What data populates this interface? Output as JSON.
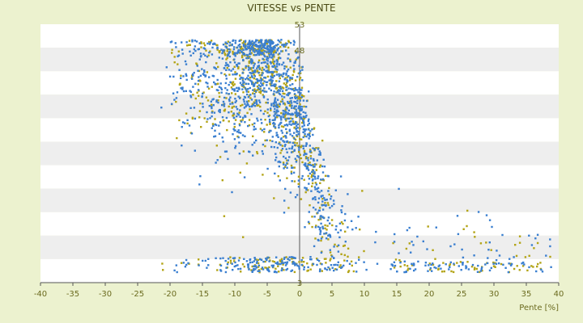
{
  "chart_data": {
    "type": "scatter",
    "title": "VITESSE vs PENTE",
    "xlabel": "Pente [%]",
    "ylabel": "",
    "xlim": [
      -40,
      40
    ],
    "ylim": [
      3,
      53
    ],
    "x_ticks": [
      "-40",
      "-35",
      "-30",
      "-25",
      "-20",
      "-15",
      "-10",
      "-5",
      "0",
      "5",
      "10",
      "15",
      "20",
      "25",
      "30",
      "35",
      "40"
    ],
    "y_ticks_visible": [
      "3",
      "48",
      "53"
    ],
    "grid": "horizontal bands",
    "series": [
      {
        "color": "#3a7fd0",
        "points": "~1500 points estimated"
      },
      {
        "color": "#b3a416",
        "points": "~800 points estimated"
      }
    ],
    "colors": {
      "background": "#ecf2cf",
      "plot_band_light": "#ffffff",
      "plot_band_dark": "#eeeeee",
      "axis": "#555555"
    }
  }
}
